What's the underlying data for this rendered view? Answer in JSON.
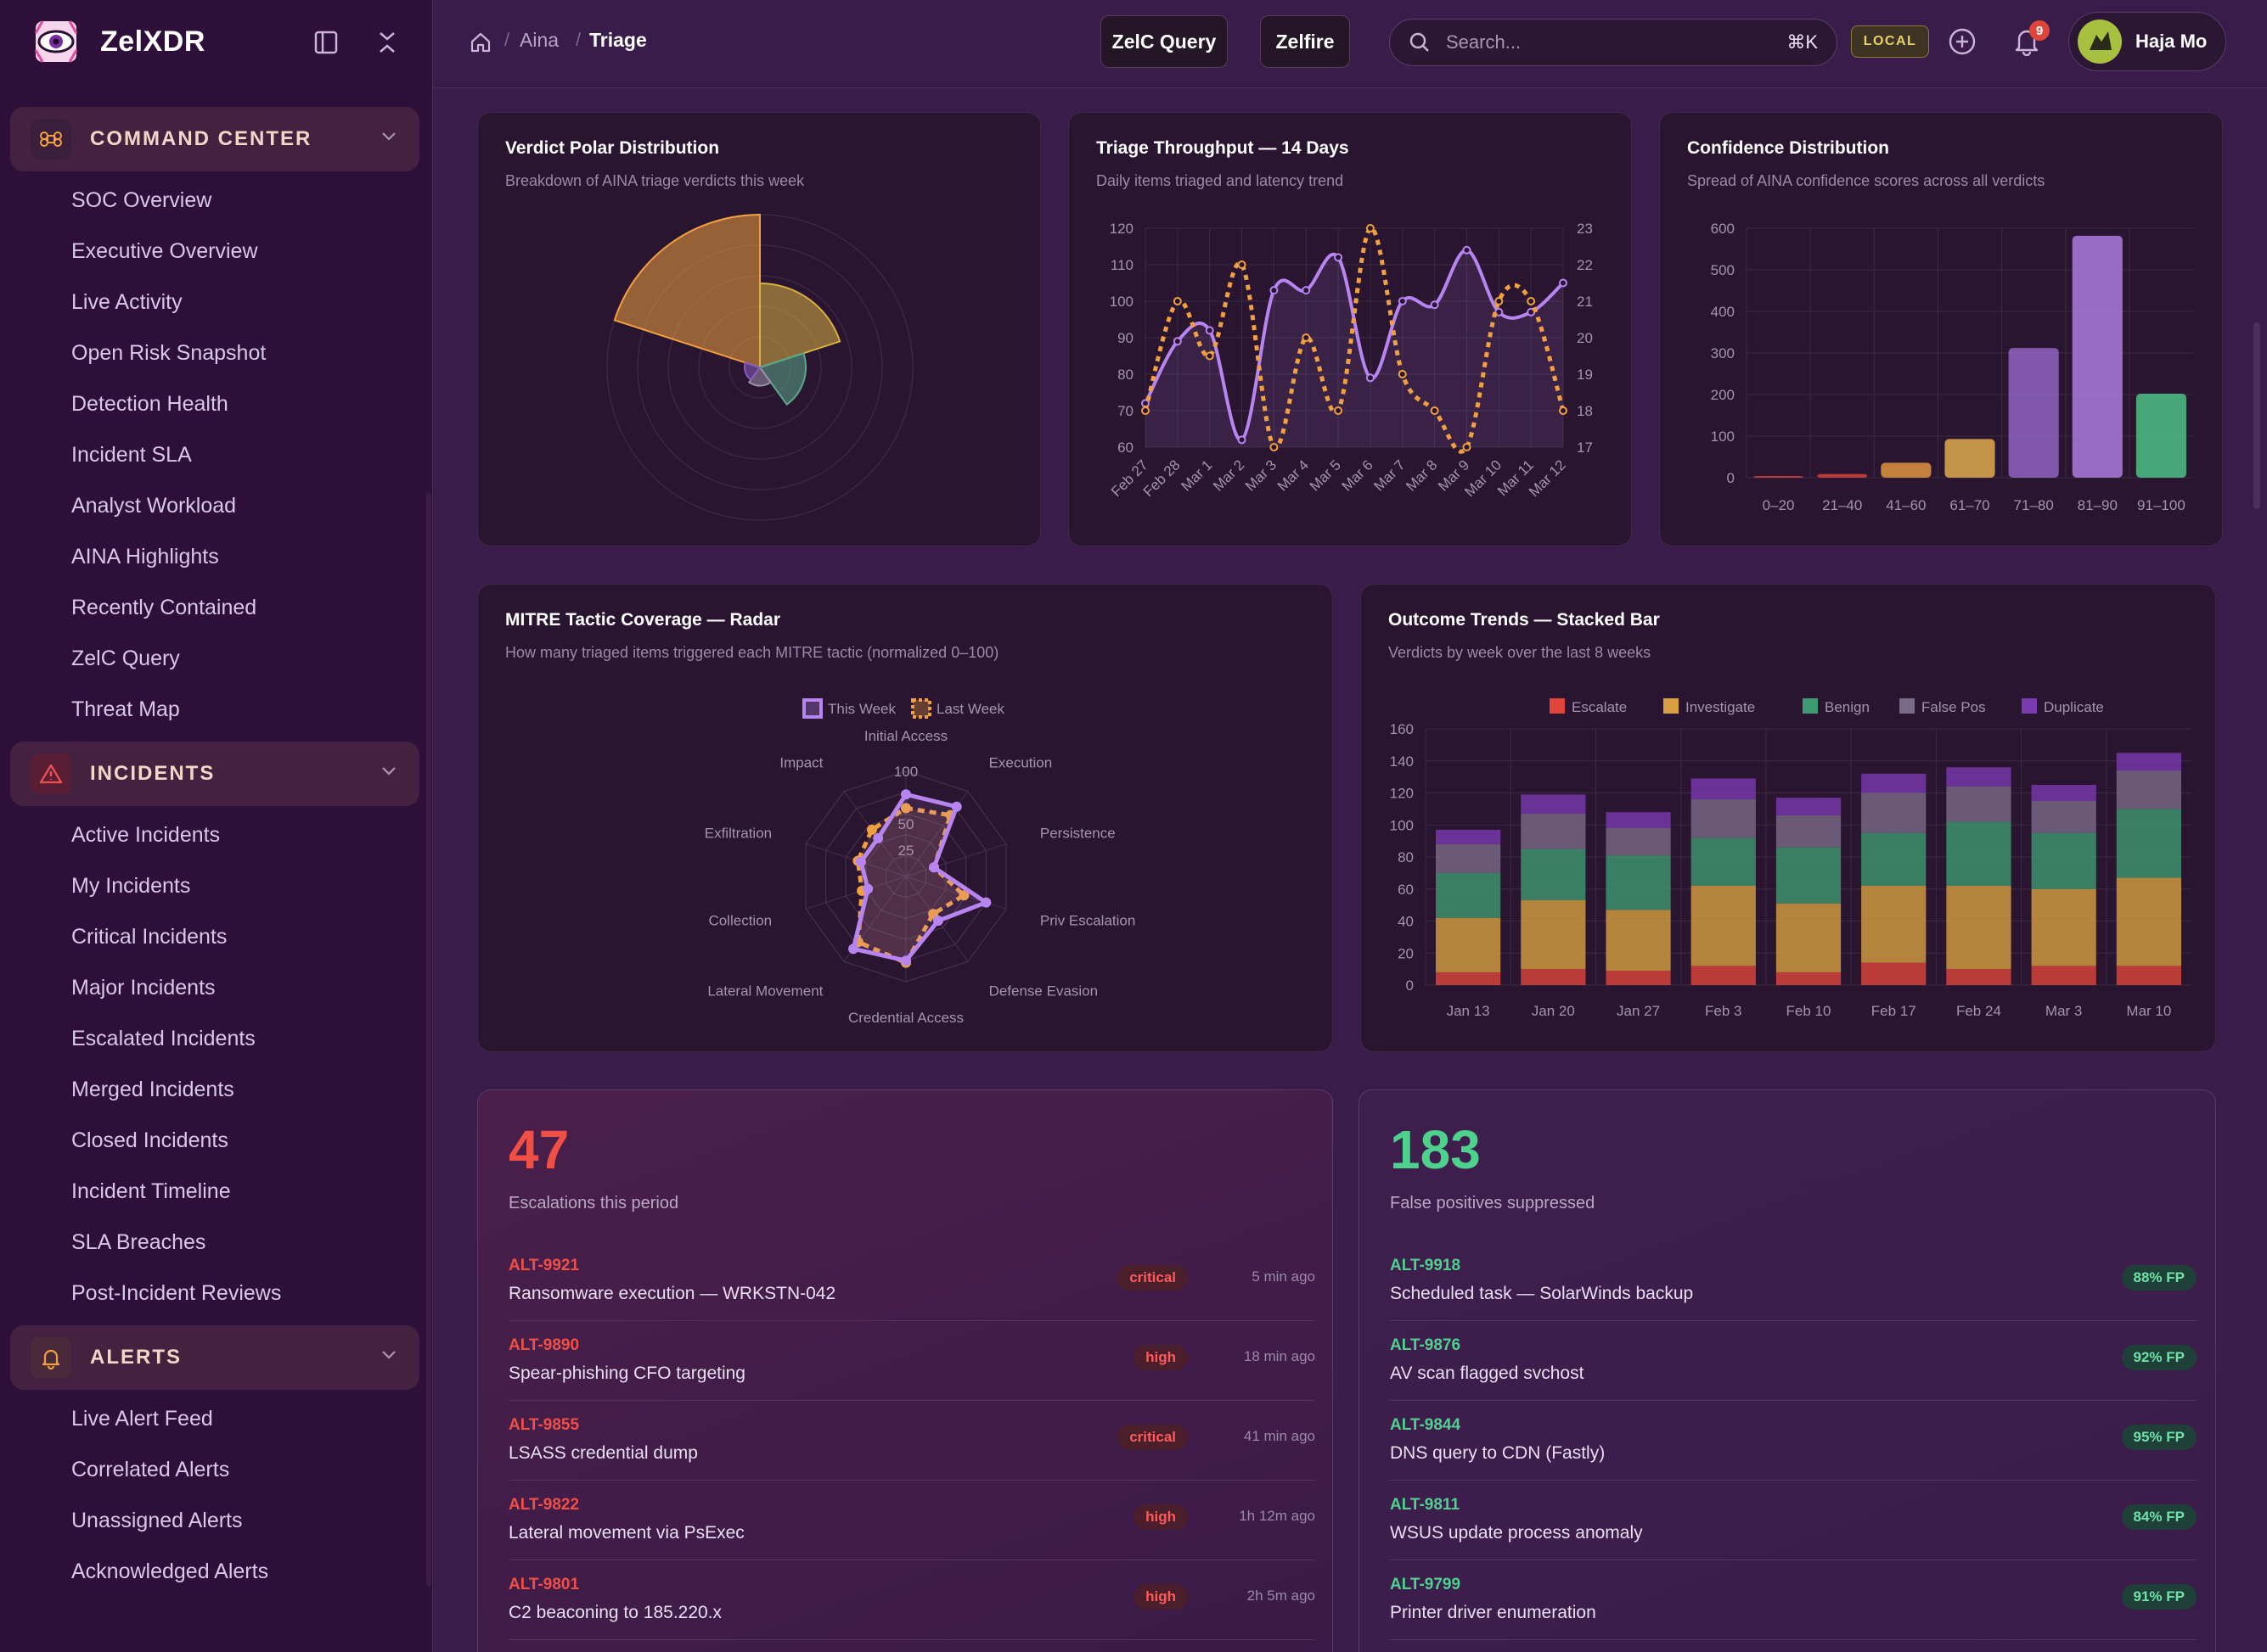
{
  "app": {
    "name": "ZelXDR"
  },
  "sidebar": {
    "sections": [
      {
        "label": "COMMAND CENTER",
        "icon": "command-icon",
        "items": [
          "SOC Overview",
          "Executive Overview",
          "Live Activity",
          "Open Risk Snapshot",
          "Detection Health",
          "Incident SLA",
          "Analyst Workload",
          "AINA Highlights",
          "Recently Contained",
          "ZelC Query",
          "Threat Map"
        ]
      },
      {
        "label": "INCIDENTS",
        "icon": "warning-triangle-icon",
        "items": [
          "Active Incidents",
          "My Incidents",
          "Critical Incidents",
          "Major Incidents",
          "Escalated Incidents",
          "Merged Incidents",
          "Closed Incidents",
          "Incident Timeline",
          "SLA Breaches",
          "Post-Incident Reviews"
        ]
      },
      {
        "label": "ALERTS",
        "icon": "bell-icon",
        "items": [
          "Live Alert Feed",
          "Correlated Alerts",
          "Unassigned Alerts",
          "Acknowledged Alerts"
        ]
      }
    ]
  },
  "header": {
    "breadcrumb": [
      "Aina",
      "Triage"
    ],
    "buttons": {
      "zelc_query": "ZelC Query",
      "zelfire": "Zelfire"
    },
    "search": {
      "placeholder": "Search...",
      "shortcut": "⌘K"
    },
    "env_badge": "LOCAL",
    "notifications": "9",
    "user": "Haja Mo"
  },
  "colors": {
    "accent": "#b784f0",
    "orange": "#f0a040",
    "critical": "#e0453c",
    "green": "#4fd18e"
  },
  "charts": {
    "polar": {
      "title": "Verdict Polar Distribution",
      "subtitle": "Breakdown of AINA triage verdicts this week"
    },
    "throughput": {
      "title": "Triage Throughput — 14 Days",
      "subtitle": "Daily items triaged and latency trend"
    },
    "confidence": {
      "title": "Confidence Distribution",
      "subtitle": "Spread of AINA confidence scores across all verdicts"
    },
    "radar": {
      "title": "MITRE Tactic Coverage — Radar",
      "subtitle": "How many triaged items triggered each MITRE tactic (normalized 0–100)"
    },
    "stacked": {
      "title": "Outcome Trends — Stacked Bar",
      "subtitle": "Verdicts by week over the last 8 weeks"
    }
  },
  "chart_data": [
    {
      "type": "pie",
      "variant": "polar-area",
      "categories": [
        "Escalate",
        "Investigate",
        "Benign",
        "False Pos",
        "Duplicate"
      ],
      "values": [
        100,
        55,
        30,
        12,
        10
      ],
      "colors": [
        "#f0a040",
        "#d8b040",
        "#5aa88a",
        "#9a8ea8",
        "#8a5cc0"
      ],
      "rings": 5
    },
    {
      "type": "line",
      "categories": [
        "Feb 27",
        "Feb 28",
        "Mar 1",
        "Mar 2",
        "Mar 3",
        "Mar 4",
        "Mar 5",
        "Mar 6",
        "Mar 7",
        "Mar 8",
        "Mar 9",
        "Mar 10",
        "Mar 11",
        "Mar 12"
      ],
      "series": [
        {
          "axis": "left",
          "style": "solid",
          "color": "#b784f0",
          "values": [
            72,
            89,
            92,
            62,
            103,
            103,
            112,
            79,
            100,
            99,
            114,
            97,
            97,
            105
          ]
        },
        {
          "axis": "right",
          "style": "dashed",
          "color": "#f0a040",
          "values": [
            18,
            21,
            19.5,
            22,
            17,
            20,
            18,
            23,
            19,
            18,
            17,
            21,
            21,
            18
          ]
        }
      ],
      "y_left": {
        "range": [
          60,
          120
        ],
        "ticks": [
          60,
          70,
          80,
          90,
          100,
          110,
          120
        ]
      },
      "y_right": {
        "range": [
          17,
          23
        ],
        "ticks": [
          17,
          18,
          19,
          20,
          21,
          22,
          23
        ]
      }
    },
    {
      "type": "bar",
      "categories": [
        "0–20",
        "21–40",
        "41–60",
        "61–70",
        "71–80",
        "81–90",
        "91–100"
      ],
      "values": [
        4,
        9,
        36,
        93,
        312,
        582,
        202
      ],
      "colors": [
        "#e0453c",
        "#e0453c",
        "#f0a040",
        "#f0b850",
        "#9a6ad0",
        "#b784f0",
        "#4fd18e"
      ],
      "ylim": [
        0,
        600
      ],
      "yticks": [
        0,
        100,
        200,
        300,
        400,
        500,
        600
      ]
    },
    {
      "type": "radar",
      "axes": [
        "Initial Access",
        "Execution",
        "Persistence",
        "Priv Escalation",
        "Defense Evasion",
        "Credential Access",
        "Lateral Movement",
        "Collection",
        "Exfiltration",
        "Impact"
      ],
      "ticks": [
        25,
        50,
        100
      ],
      "legend": [
        "This Week",
        "Last Week"
      ],
      "series": [
        {
          "name": "This Week",
          "color": "#b784f0",
          "style": "solid",
          "values": [
            78,
            82,
            28,
            80,
            52,
            80,
            85,
            38,
            45,
            45
          ]
        },
        {
          "name": "Last Week",
          "color": "#f0a040",
          "style": "dashed",
          "values": [
            65,
            72,
            28,
            58,
            44,
            82,
            77,
            44,
            48,
            55
          ]
        }
      ]
    },
    {
      "type": "bar",
      "variant": "stacked",
      "categories": [
        "Jan 13",
        "Jan 20",
        "Jan 27",
        "Feb 3",
        "Feb 10",
        "Feb 17",
        "Feb 24",
        "Mar 3",
        "Mar 10"
      ],
      "series": [
        {
          "name": "Escalate",
          "color": "#e0453c",
          "values": [
            8,
            10,
            9,
            12,
            8,
            14,
            10,
            12,
            12
          ]
        },
        {
          "name": "Investigate",
          "color": "#d8a040",
          "values": [
            34,
            43,
            38,
            50,
            43,
            48,
            52,
            48,
            55
          ]
        },
        {
          "name": "Benign",
          "color": "#3e9a70",
          "values": [
            28,
            32,
            34,
            30,
            35,
            33,
            40,
            35,
            43
          ]
        },
        {
          "name": "False Pos",
          "color": "#7a6a8a",
          "values": [
            18,
            22,
            17,
            24,
            20,
            25,
            22,
            20,
            24
          ]
        },
        {
          "name": "Duplicate",
          "color": "#7a3ab0",
          "values": [
            9,
            12,
            10,
            13,
            11,
            12,
            12,
            10,
            11
          ]
        }
      ],
      "ylim": [
        0,
        160
      ],
      "yticks": [
        0,
        20,
        40,
        60,
        80,
        100,
        120,
        140,
        160
      ]
    }
  ],
  "escalations": {
    "count": "47",
    "label": "Escalations this period",
    "items": [
      {
        "id": "ALT-9921",
        "title": "Ransomware execution — WRKSTN-042",
        "sev": "critical",
        "time": "5 min ago"
      },
      {
        "id": "ALT-9890",
        "title": "Spear-phishing CFO targeting",
        "sev": "high",
        "time": "18 min ago"
      },
      {
        "id": "ALT-9855",
        "title": "LSASS credential dump",
        "sev": "critical",
        "time": "41 min ago"
      },
      {
        "id": "ALT-9822",
        "title": "Lateral movement via PsExec",
        "sev": "high",
        "time": "1h 12m ago"
      },
      {
        "id": "ALT-9801",
        "title": "C2 beaconing to 185.220.x",
        "sev": "high",
        "time": "2h 5m ago"
      }
    ]
  },
  "false_positives": {
    "count": "183",
    "label": "False positives suppressed",
    "items": [
      {
        "id": "ALT-9918",
        "title": "Scheduled task — SolarWinds backup",
        "score": "88% FP"
      },
      {
        "id": "ALT-9876",
        "title": "AV scan flagged svchost",
        "score": "92% FP"
      },
      {
        "id": "ALT-9844",
        "title": "DNS query to CDN (Fastly)",
        "score": "95% FP"
      },
      {
        "id": "ALT-9811",
        "title": "WSUS update process anomaly",
        "score": "84% FP"
      },
      {
        "id": "ALT-9799",
        "title": "Printer driver enumeration",
        "score": "91% FP"
      }
    ]
  }
}
